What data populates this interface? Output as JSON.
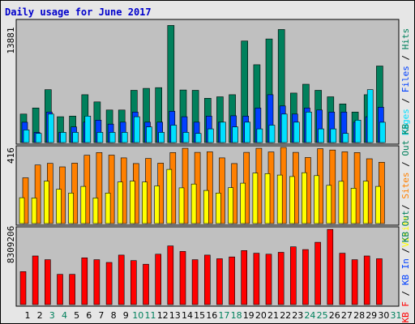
{
  "title": "Daily usage for June 2017",
  "colors": {
    "hits": "#00805c",
    "files": "#0040ff",
    "pages": "#00e0ff",
    "visits": "#ffff00",
    "sites": "#ff8000",
    "kbytes": "#ff0000",
    "panel_bg": "#c0c0c0",
    "weekend_label": "#00805c"
  },
  "chart_data": [
    {
      "type": "bar",
      "ymax_label": "13881",
      "legend": [
        "Pages",
        "Files",
        "Hits"
      ],
      "categories": [
        "1",
        "2",
        "3",
        "4",
        "5",
        "6",
        "7",
        "8",
        "9",
        "10",
        "11",
        "12",
        "13",
        "14",
        "15",
        "16",
        "17",
        "18",
        "19",
        "20",
        "21",
        "22",
        "23",
        "24",
        "25",
        "26",
        "27",
        "28",
        "29",
        "30",
        "31"
      ],
      "ylim": [
        0,
        13881
      ],
      "series": [
        {
          "name": "Hits",
          "values": [
            3255,
            3953,
            6042,
            2953,
            3023,
            5467,
            4650,
            3720,
            3720,
            5965,
            6194,
            6271,
            13380,
            6005,
            5965,
            5065,
            5227,
            5467,
            11600,
            8893,
            11837,
            12917,
            5650,
            6666,
            5967,
            5227,
            4417,
            3488,
            5467,
            8742,
            0
          ]
        },
        {
          "name": "Files",
          "values": [
            2323,
            1162,
            3486,
            1162,
            1782,
            2328,
            2564,
            2106,
            2328,
            3486,
            2328,
            2328,
            3571,
            2953,
            2328,
            3030,
            2328,
            3065,
            3030,
            3953,
            5467,
            4182,
            3255,
            3953,
            3720,
            3486,
            3486,
            2328,
            2953,
            4042,
            0
          ]
        },
        {
          "name": "Pages",
          "values": [
            1446,
            1046,
            3255,
            1162,
            1162,
            3030,
            1162,
            1162,
            1162,
            2953,
            1782,
            1162,
            1988,
            1162,
            1046,
            1566,
            2328,
            1782,
            2328,
            1566,
            1988,
            3255,
            2328,
            3486,
            1566,
            1566,
            1046,
            2564,
            6042,
            2323,
            0
          ]
        }
      ]
    },
    {
      "type": "bar",
      "ymax_label": "416",
      "legend": [
        "Visits",
        "Sites",
        "Out",
        "KB"
      ],
      "categories": [
        "1",
        "2",
        "3",
        "4",
        "5",
        "6",
        "7",
        "8",
        "9",
        "10",
        "11",
        "12",
        "13",
        "14",
        "15",
        "16",
        "17",
        "18",
        "19",
        "20",
        "21",
        "22",
        "23",
        "24",
        "25",
        "26",
        "27",
        "28",
        "29",
        "30",
        "31"
      ],
      "ylim": [
        0,
        416
      ],
      "series": [
        {
          "name": "Sites",
          "values": [
            250,
            320,
            329,
            310,
            330,
            373,
            388,
            374,
            359,
            328,
            356,
            330,
            388,
            411,
            389,
            392,
            359,
            328,
            389,
            411,
            391,
            416,
            389,
            361,
            409,
            402,
            392,
            388,
            354,
            335,
            0
          ]
        },
        {
          "name": "Visits",
          "values": [
            141,
            140,
            232,
            187,
            167,
            203,
            140,
            167,
            227,
            232,
            227,
            206,
            296,
            195,
            216,
            181,
            167,
            196,
            221,
            276,
            273,
            265,
            257,
            278,
            262,
            209,
            231,
            193,
            232,
            203,
            0
          ]
        }
      ]
    },
    {
      "type": "bar",
      "ymax_label": "8309206",
      "legend": [
        "KB F",
        "KB In",
        "KB Out"
      ],
      "categories": [
        "1",
        "2",
        "3",
        "4",
        "5",
        "6",
        "7",
        "8",
        "9",
        "10",
        "11",
        "12",
        "13",
        "14",
        "15",
        "16",
        "17",
        "18",
        "19",
        "20",
        "21",
        "22",
        "23",
        "24",
        "25",
        "26",
        "27",
        "28",
        "29",
        "30",
        "31"
      ],
      "ylim": [
        0,
        8309206
      ],
      "series": [
        {
          "name": "KB F",
          "values": [
            3600000,
            5300000,
            4900000,
            3300000,
            3300000,
            5100000,
            4900000,
            4600000,
            5400000,
            4800000,
            4400000,
            5500000,
            6400000,
            5800000,
            4900000,
            5400000,
            5000000,
            5200000,
            5900000,
            5600000,
            5500000,
            5700000,
            6300000,
            6000000,
            6800000,
            8200000,
            5600000,
            4900000,
            5300000,
            5000000,
            0
          ]
        }
      ]
    }
  ],
  "x_labels": {
    "days": [
      "1",
      "2",
      "3",
      "4",
      "5",
      "6",
      "7",
      "8",
      "9",
      "10",
      "11",
      "12",
      "13",
      "14",
      "15",
      "16",
      "17",
      "18",
      "19",
      "20",
      "21",
      "22",
      "23",
      "24",
      "25",
      "26",
      "27",
      "28",
      "29",
      "30",
      "31"
    ],
    "weekend_days": [
      "3",
      "4",
      "10",
      "11",
      "17",
      "18",
      "24",
      "25",
      "31"
    ]
  }
}
